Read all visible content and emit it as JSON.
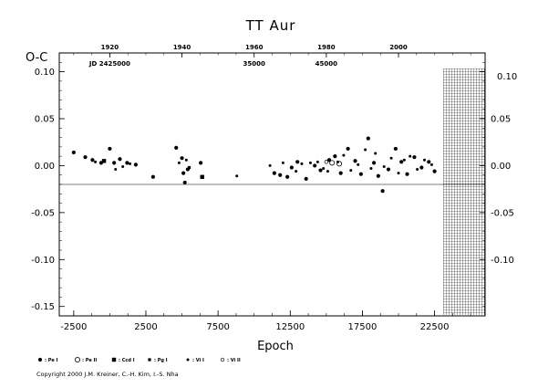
{
  "chart_data": {
    "type": "scatter",
    "title": "TT Aur",
    "ylabel": "O-C",
    "xlabel": "Epoch",
    "xlim": [
      -3500,
      26000
    ],
    "ylim": [
      -0.16,
      0.12
    ],
    "x_ticks": [
      -2500,
      2500,
      7500,
      12500,
      17500,
      22500
    ],
    "y_ticks_left": [
      "0.10",
      "0.05",
      "0.00",
      "-0.05",
      "-0.10",
      "-0.15"
    ],
    "y_ticks_right": [
      "0.10",
      "0.05",
      "0.00",
      "-0.05",
      "-0.10"
    ],
    "right_axis_top_label": "0.10",
    "top_axis_years": [
      {
        "label": "1920",
        "epoch": 0
      },
      {
        "label": "1940",
        "epoch": 5000
      },
      {
        "label": "1960",
        "epoch": 10000
      },
      {
        "label": "1980",
        "epoch": 15000
      },
      {
        "label": "2000",
        "epoch": 20000
      }
    ],
    "jd_labels": [
      {
        "label": "JD 2425000",
        "epoch": 0
      },
      {
        "label": "35000",
        "epoch": 10000
      },
      {
        "label": "45000",
        "epoch": 15000
      }
    ],
    "hatched_region_start": 23000,
    "series": [
      {
        "name": ": Pe I",
        "marker": "filled-circle",
        "points": [
          [
            -2500,
            0.014
          ],
          [
            -1700,
            0.009
          ],
          [
            -1200,
            0.006
          ],
          [
            -600,
            0.003
          ],
          [
            0,
            0.018
          ],
          [
            300,
            0.003
          ],
          [
            700,
            0.007
          ],
          [
            1200,
            0.003
          ],
          [
            1800,
            0.001
          ],
          [
            3000,
            -0.012
          ],
          [
            4600,
            0.019
          ],
          [
            5000,
            0.008
          ],
          [
            5100,
            -0.008
          ],
          [
            5200,
            -0.018
          ],
          [
            5400,
            -0.004
          ],
          [
            6300,
            0.003
          ],
          [
            11400,
            -0.008
          ],
          [
            11800,
            -0.01
          ],
          [
            12300,
            -0.012
          ],
          [
            12600,
            -0.002
          ],
          [
            13000,
            0.004
          ],
          [
            13600,
            -0.014
          ],
          [
            14200,
            0.0
          ],
          [
            14600,
            -0.005
          ],
          [
            15200,
            0.006
          ],
          [
            15600,
            0.01
          ],
          [
            16000,
            -0.008
          ],
          [
            16500,
            0.018
          ],
          [
            17000,
            0.005
          ],
          [
            17400,
            -0.009
          ],
          [
            17900,
            0.029
          ],
          [
            18300,
            0.003
          ],
          [
            18600,
            -0.011
          ],
          [
            18900,
            -0.027
          ],
          [
            19300,
            -0.004
          ],
          [
            19800,
            0.018
          ],
          [
            20200,
            0.004
          ],
          [
            20600,
            -0.009
          ],
          [
            21100,
            0.009
          ],
          [
            21600,
            -0.002
          ],
          [
            22100,
            0.004
          ],
          [
            22500,
            -0.006
          ]
        ]
      },
      {
        "name": ": Pe II",
        "marker": "open-circle",
        "points": [
          [
            15400,
            0.003
          ],
          [
            15900,
            0.002
          ]
        ]
      },
      {
        "name": ": Ccd I",
        "marker": "filled-square",
        "points": [
          [
            -400,
            0.005
          ],
          [
            6400,
            -0.012
          ]
        ]
      },
      {
        "name": ": Pg I",
        "marker": "small-square",
        "points": [
          [
            5500,
            -0.002
          ]
        ]
      },
      {
        "name": ": Vi I",
        "marker": "small-dot",
        "points": [
          [
            -1000,
            0.004
          ],
          [
            400,
            -0.004
          ],
          [
            900,
            -0.001
          ],
          [
            1400,
            0.002
          ],
          [
            4800,
            0.003
          ],
          [
            5300,
            0.006
          ],
          [
            8800,
            -0.011
          ],
          [
            11100,
            0.0
          ],
          [
            12000,
            0.003
          ],
          [
            12900,
            -0.006
          ],
          [
            13300,
            0.002
          ],
          [
            13900,
            0.003
          ],
          [
            14400,
            0.004
          ],
          [
            14800,
            -0.003
          ],
          [
            15100,
            -0.006
          ],
          [
            15800,
            0.004
          ],
          [
            16200,
            0.011
          ],
          [
            16700,
            -0.005
          ],
          [
            17200,
            0.001
          ],
          [
            17700,
            0.017
          ],
          [
            18100,
            -0.003
          ],
          [
            18400,
            0.013
          ],
          [
            19000,
            -0.001
          ],
          [
            19500,
            0.008
          ],
          [
            20000,
            -0.008
          ],
          [
            20400,
            0.006
          ],
          [
            20800,
            0.01
          ],
          [
            21300,
            -0.004
          ],
          [
            21800,
            0.006
          ],
          [
            22300,
            0.001
          ]
        ]
      },
      {
        "name": ": Vi II",
        "marker": "open-small-circle",
        "points": [
          [
            15000,
            0.004
          ]
        ]
      }
    ]
  },
  "copyright": "Copyright 2000 J.M. Kreiner, C.-H. Kim, I.-S. Nha"
}
